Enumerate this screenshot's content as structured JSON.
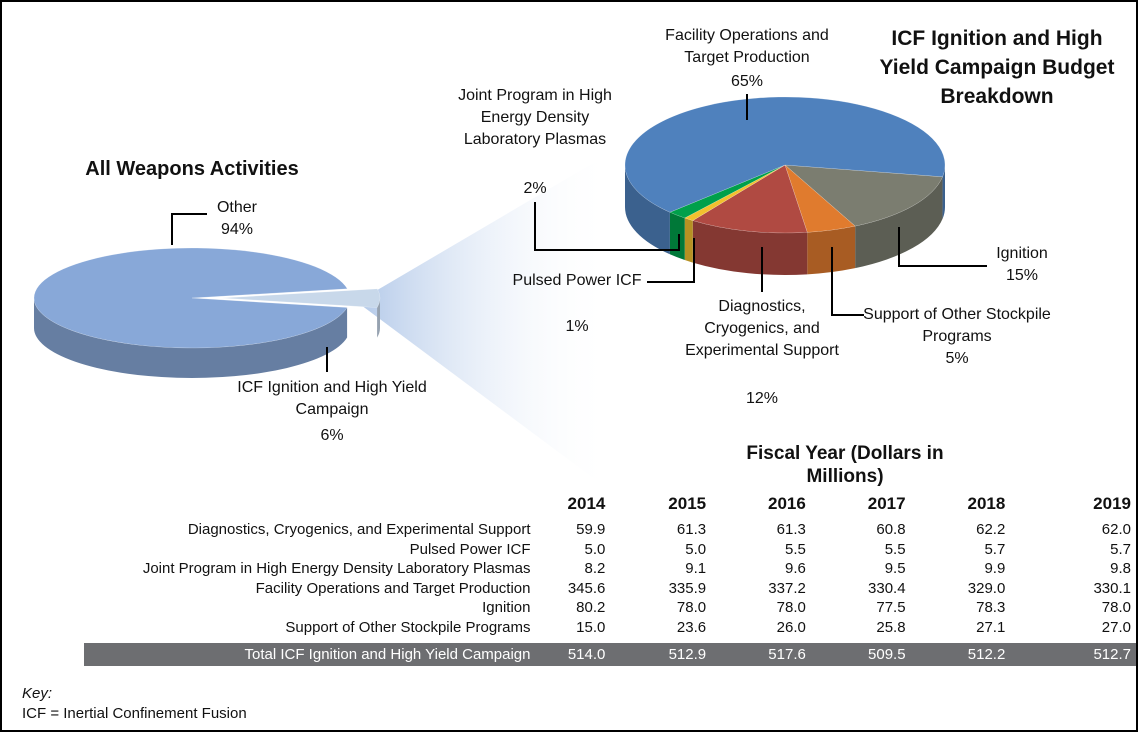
{
  "chart_data": [
    {
      "type": "pie",
      "title": "All Weapons Activities",
      "categories": [
        "Other",
        "ICF Ignition and High Yield Campaign"
      ],
      "values": [
        94,
        6
      ],
      "value_labels": [
        "94%",
        "6%"
      ],
      "colors": [
        "#88a8d8",
        "#c8d8ea"
      ]
    },
    {
      "type": "pie",
      "title": "ICF Ignition and High Yield Campaign Budget Breakdown",
      "categories": [
        "Ignition",
        "Support of Other Stockpile Programs",
        "Diagnostics, Cryogenics, and Experimental Support",
        "Pulsed Power ICF",
        "Joint Program in High Energy Density Laboratory Plasmas",
        "Facility Operations and Target Production"
      ],
      "values": [
        15,
        5,
        12,
        1,
        2,
        65
      ],
      "value_labels": [
        "15%",
        "5%",
        "12%",
        "1%",
        "2%",
        "65%"
      ],
      "colors": [
        "#7b7d70",
        "#e07b2e",
        "#b04a42",
        "#f2c12e",
        "#00a04b",
        "#4f81bd"
      ]
    }
  ],
  "table": {
    "title": "Fiscal Year (Dollars in Millions)",
    "columns": [
      "2014",
      "2015",
      "2016",
      "2017",
      "2018",
      "2019"
    ],
    "rows": [
      {
        "label": "Diagnostics, Cryogenics, and Experimental Support",
        "values": [
          "59.9",
          "61.3",
          "61.3",
          "60.8",
          "62.2",
          "62.0"
        ]
      },
      {
        "label": "Pulsed Power ICF",
        "values": [
          "5.0",
          "5.0",
          "5.5",
          "5.5",
          "5.7",
          "5.7"
        ]
      },
      {
        "label": "Joint Program in High Energy Density Laboratory Plasmas",
        "values": [
          "8.2",
          "9.1",
          "9.6",
          "9.5",
          "9.9",
          "9.8"
        ]
      },
      {
        "label": "Facility Operations and Target Production",
        "values": [
          "345.6",
          "335.9",
          "337.2",
          "330.4",
          "329.0",
          "330.1"
        ]
      },
      {
        "label": "Ignition",
        "values": [
          "80.2",
          "78.0",
          "78.0",
          "77.5",
          "78.3",
          "78.0"
        ]
      },
      {
        "label": "Support of Other Stockpile Programs",
        "values": [
          "15.0",
          "23.6",
          "26.0",
          "25.8",
          "27.1",
          "27.0"
        ]
      }
    ],
    "total": {
      "label": "Total ICF Ignition and High Yield Campaign",
      "values": [
        "514.0",
        "512.9",
        "517.6",
        "509.5",
        "512.2",
        "512.7"
      ]
    }
  },
  "key": {
    "title": "Key:",
    "text": "ICF = Inertial Confinement Fusion"
  }
}
